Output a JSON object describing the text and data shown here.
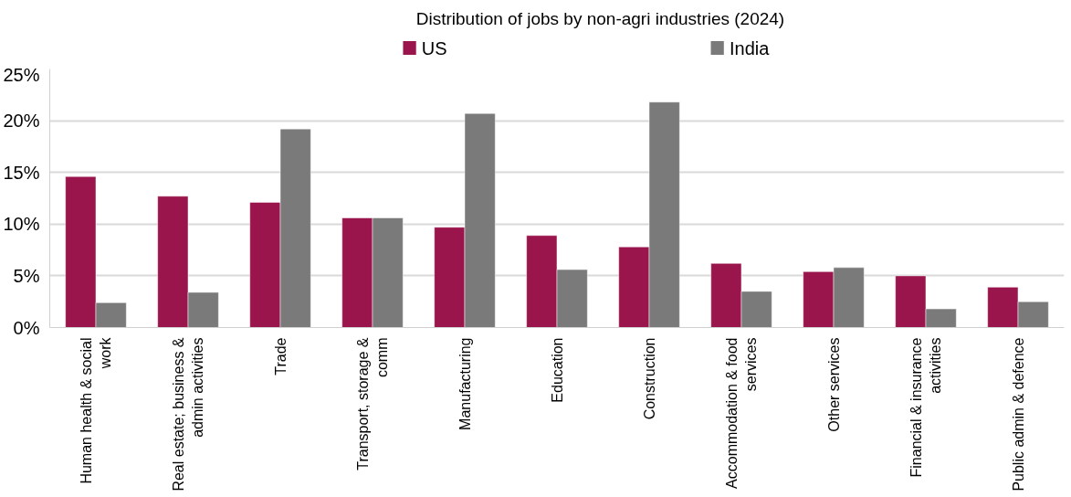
{
  "chart_data": {
    "type": "bar",
    "title": "Distribution of jobs by non-agri industries (2024)",
    "categories": [
      "Human health & social work",
      "Real estate; business & admin activities",
      "Trade",
      "Transport, storage & comm",
      "Manufacturing",
      "Education",
      "Construction",
      "Accommodation & food services",
      "Other services",
      "Financial & insurance activities",
      "Public admin & defence"
    ],
    "series": [
      {
        "name": "US",
        "color": "#99154b",
        "values": [
          14.6,
          12.7,
          12.1,
          10.6,
          9.7,
          8.9,
          7.8,
          6.2,
          5.4,
          5.0,
          3.9
        ]
      },
      {
        "name": "India",
        "color": "#7a7a7a",
        "values": [
          2.4,
          3.4,
          19.2,
          10.6,
          20.7,
          5.6,
          21.8,
          3.5,
          5.8,
          1.8,
          2.5
        ]
      }
    ],
    "ylim": [
      0,
      25
    ],
    "yticks": [
      {
        "value": 0,
        "label": "0%"
      },
      {
        "value": 5,
        "label": "5%"
      },
      {
        "value": 10,
        "label": "10%"
      },
      {
        "value": 15,
        "label": "15%"
      },
      {
        "value": 20,
        "label": "20%"
      },
      {
        "value": 25,
        "label": "25%"
      }
    ],
    "grid": "y",
    "legend": "top"
  }
}
